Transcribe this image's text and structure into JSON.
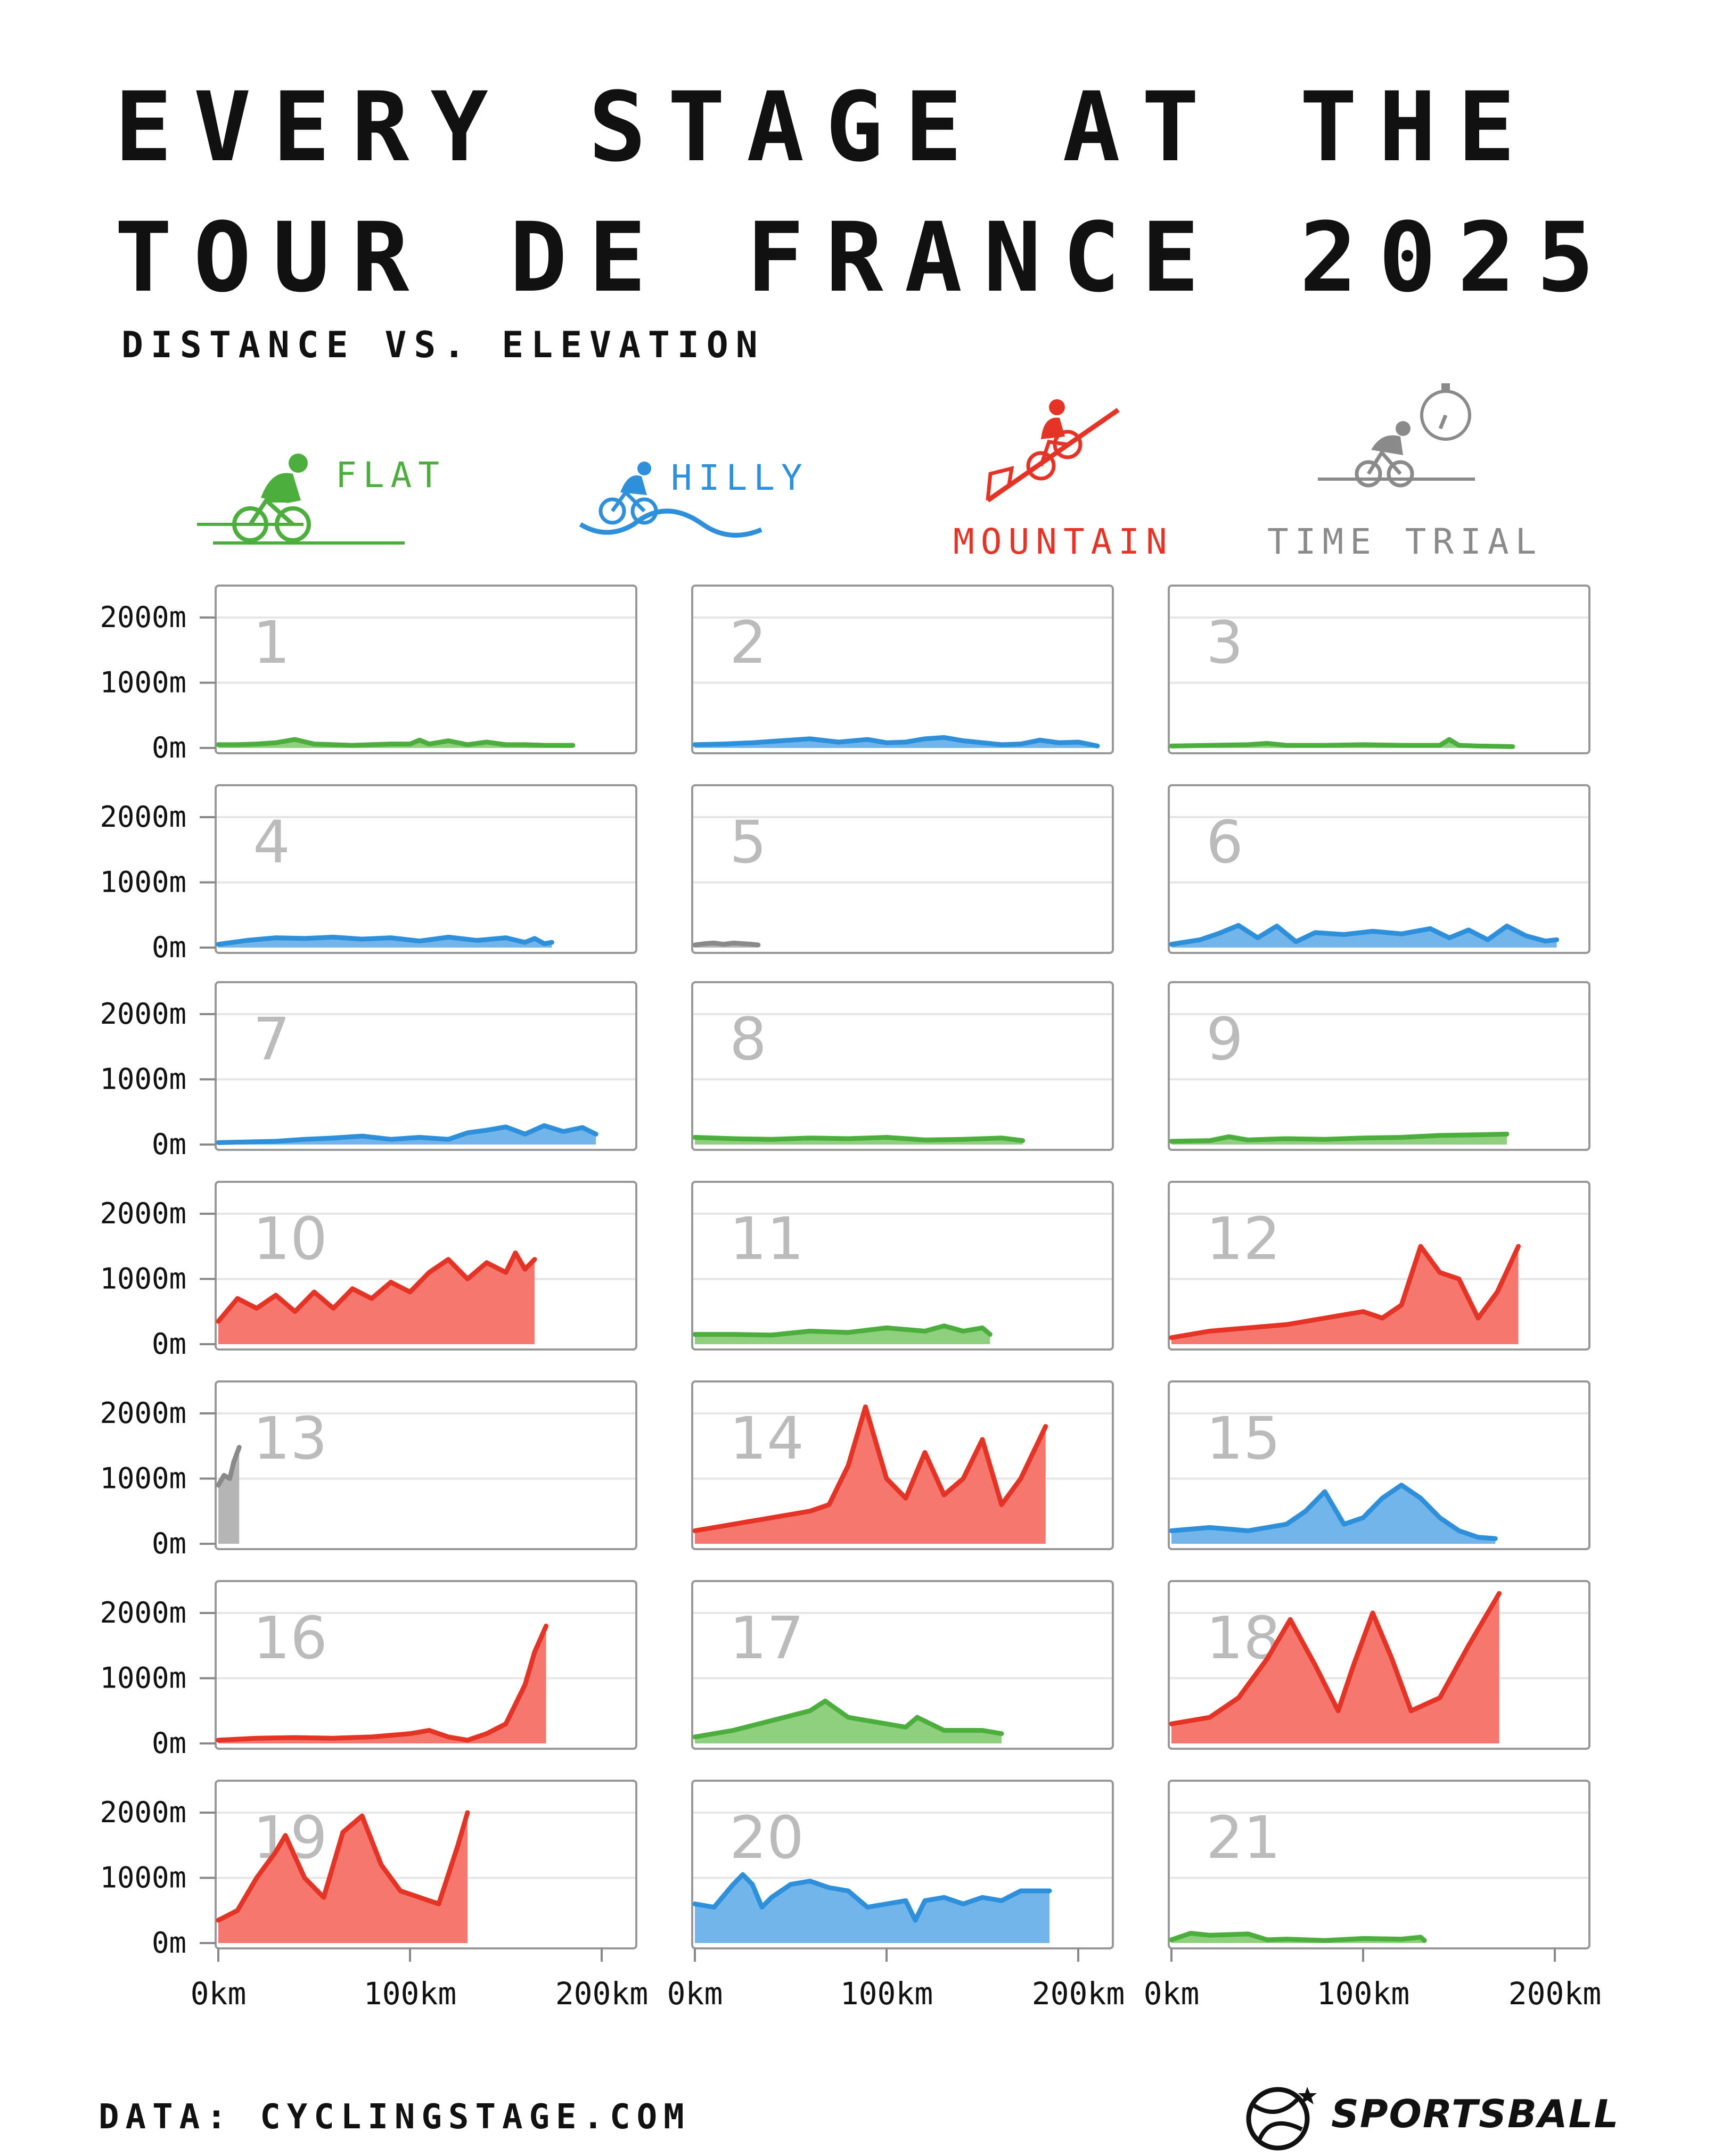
{
  "title_line1": "EVERY STAGE AT THE",
  "title_line2": "TOUR DE FRANCE 2025",
  "subtitle": "DISTANCE VS. ELEVATION",
  "legend": {
    "flat": "FLAT",
    "hilly": "HILLY",
    "mountain": "MOUNTAIN",
    "time_trial": "TIME TRIAL"
  },
  "colors": {
    "flat": "#4caf3d",
    "hilly": "#2e8fdb",
    "mountain": "#e53325",
    "time_trial": "#8a8a8a"
  },
  "source": "DATA: CYCLINGSTAGE.COM",
  "brand": "SPORTSBALL",
  "chart_data": {
    "type": "area",
    "xlabel": "",
    "ylabel": "",
    "xlim": [
      0,
      210
    ],
    "ylim": [
      0,
      2000
    ],
    "y_ticks": [
      {
        "value": 0,
        "label": "0m"
      },
      {
        "value": 1000,
        "label": "1000m"
      },
      {
        "value": 2000,
        "label": "2000m"
      }
    ],
    "x_ticks": [
      {
        "value": 0,
        "label": "0km"
      },
      {
        "value": 100,
        "label": "100km"
      },
      {
        "value": 200,
        "label": "200km"
      }
    ],
    "grid": true,
    "stages": [
      {
        "stage": "1",
        "type": "flat",
        "x": [
          0,
          10,
          20,
          30,
          40,
          50,
          60,
          70,
          80,
          90,
          100,
          105,
          110,
          120,
          130,
          140,
          150,
          160,
          170,
          185
        ],
        "y": [
          50,
          50,
          60,
          80,
          130,
          60,
          50,
          40,
          50,
          60,
          60,
          120,
          60,
          110,
          50,
          90,
          50,
          50,
          40,
          40
        ]
      },
      {
        "stage": "2",
        "type": "hilly",
        "x": [
          0,
          15,
          30,
          45,
          60,
          75,
          90,
          100,
          110,
          120,
          130,
          140,
          150,
          160,
          170,
          180,
          190,
          200,
          210
        ],
        "y": [
          50,
          60,
          80,
          110,
          140,
          90,
          130,
          80,
          90,
          140,
          160,
          110,
          80,
          50,
          60,
          120,
          80,
          90,
          30
        ]
      },
      {
        "stage": "3",
        "type": "flat",
        "x": [
          0,
          20,
          40,
          50,
          60,
          80,
          100,
          120,
          140,
          145,
          150,
          160,
          178
        ],
        "y": [
          30,
          40,
          50,
          70,
          40,
          40,
          50,
          40,
          40,
          130,
          40,
          30,
          20
        ]
      },
      {
        "stage": "4",
        "type": "hilly",
        "x": [
          0,
          15,
          30,
          45,
          60,
          75,
          90,
          105,
          120,
          135,
          150,
          160,
          165,
          170,
          174
        ],
        "y": [
          50,
          110,
          150,
          140,
          160,
          130,
          150,
          100,
          160,
          110,
          150,
          80,
          140,
          60,
          80
        ]
      },
      {
        "stage": "5",
        "type": "time_trial",
        "x": [
          0,
          5,
          10,
          15,
          20,
          25,
          30,
          33
        ],
        "y": [
          40,
          60,
          70,
          50,
          70,
          60,
          50,
          40
        ]
      },
      {
        "stage": "6",
        "type": "hilly",
        "x": [
          0,
          15,
          25,
          35,
          45,
          55,
          65,
          75,
          90,
          105,
          120,
          135,
          145,
          155,
          165,
          175,
          185,
          195,
          201
        ],
        "y": [
          50,
          120,
          220,
          340,
          150,
          330,
          90,
          230,
          200,
          250,
          210,
          290,
          150,
          270,
          120,
          330,
          180,
          100,
          120
        ]
      },
      {
        "stage": "7",
        "type": "hilly",
        "x": [
          0,
          15,
          30,
          45,
          60,
          75,
          90,
          105,
          120,
          130,
          140,
          150,
          160,
          170,
          180,
          190,
          197
        ],
        "y": [
          30,
          40,
          50,
          80,
          100,
          130,
          80,
          110,
          80,
          180,
          220,
          270,
          160,
          290,
          200,
          260,
          160
        ]
      },
      {
        "stage": "8",
        "type": "flat",
        "x": [
          0,
          20,
          40,
          60,
          80,
          100,
          120,
          140,
          160,
          171
        ],
        "y": [
          110,
          90,
          80,
          100,
          90,
          110,
          70,
          80,
          100,
          60
        ]
      },
      {
        "stage": "9",
        "type": "flat",
        "x": [
          0,
          20,
          30,
          40,
          60,
          80,
          100,
          120,
          140,
          160,
          175
        ],
        "y": [
          50,
          60,
          120,
          70,
          90,
          80,
          100,
          110,
          140,
          150,
          160
        ]
      },
      {
        "stage": "10",
        "type": "mountain",
        "x": [
          0,
          10,
          20,
          30,
          40,
          50,
          60,
          70,
          80,
          90,
          100,
          110,
          120,
          130,
          140,
          150,
          155,
          160,
          165
        ],
        "y": [
          350,
          700,
          550,
          750,
          500,
          800,
          550,
          850,
          700,
          950,
          800,
          1100,
          1300,
          1000,
          1250,
          1100,
          1400,
          1150,
          1300
        ]
      },
      {
        "stage": "11",
        "type": "flat",
        "x": [
          0,
          20,
          40,
          60,
          80,
          100,
          120,
          130,
          140,
          150,
          154
        ],
        "y": [
          150,
          150,
          140,
          200,
          180,
          250,
          200,
          280,
          200,
          250,
          150
        ]
      },
      {
        "stage": "12",
        "type": "mountain",
        "x": [
          0,
          20,
          40,
          60,
          80,
          100,
          110,
          120,
          130,
          140,
          150,
          160,
          170,
          181
        ],
        "y": [
          100,
          200,
          250,
          300,
          400,
          500,
          400,
          600,
          1500,
          1100,
          1000,
          400,
          800,
          1500
        ]
      },
      {
        "stage": "13",
        "type": "time_trial",
        "x": [
          0,
          3,
          6,
          8,
          10.9
        ],
        "y": [
          900,
          1050,
          1000,
          1250,
          1480
        ]
      },
      {
        "stage": "14",
        "type": "mountain",
        "x": [
          0,
          20,
          40,
          60,
          70,
          80,
          89,
          100,
          110,
          120,
          130,
          140,
          150,
          160,
          170,
          183
        ],
        "y": [
          200,
          300,
          400,
          500,
          600,
          1200,
          2100,
          1000,
          700,
          1400,
          750,
          1000,
          1600,
          600,
          1000,
          1800
        ]
      },
      {
        "stage": "15",
        "type": "hilly",
        "x": [
          0,
          20,
          40,
          60,
          70,
          80,
          90,
          100,
          110,
          120,
          130,
          140,
          150,
          160,
          169
        ],
        "y": [
          200,
          250,
          200,
          300,
          500,
          800,
          300,
          400,
          700,
          900,
          700,
          400,
          200,
          100,
          80
        ]
      },
      {
        "stage": "16",
        "type": "mountain",
        "x": [
          0,
          20,
          40,
          60,
          80,
          100,
          110,
          120,
          130,
          140,
          150,
          160,
          165,
          171
        ],
        "y": [
          50,
          80,
          90,
          80,
          100,
          150,
          200,
          100,
          50,
          150,
          300,
          900,
          1400,
          1800
        ]
      },
      {
        "stage": "17",
        "type": "flat",
        "x": [
          0,
          20,
          40,
          60,
          68,
          80,
          100,
          110,
          116,
          130,
          150,
          160
        ],
        "y": [
          100,
          200,
          350,
          500,
          650,
          400,
          300,
          250,
          400,
          200,
          200,
          150
        ]
      },
      {
        "stage": "18",
        "type": "mountain",
        "x": [
          0,
          20,
          35,
          50,
          62,
          75,
          87,
          95,
          105,
          115,
          125,
          140,
          155,
          171
        ],
        "y": [
          300,
          400,
          700,
          1300,
          1900,
          1200,
          500,
          1200,
          2000,
          1300,
          500,
          700,
          1500,
          2300
        ]
      },
      {
        "stage": "19",
        "type": "mountain",
        "x": [
          0,
          10,
          20,
          30,
          35,
          45,
          55,
          65,
          75,
          85,
          95,
          105,
          115,
          125,
          130
        ],
        "y": [
          350,
          500,
          1000,
          1400,
          1650,
          1000,
          700,
          1700,
          1950,
          1200,
          800,
          700,
          600,
          1500,
          2000
        ]
      },
      {
        "stage": "20",
        "type": "hilly",
        "x": [
          0,
          10,
          20,
          25,
          30,
          35,
          40,
          50,
          60,
          70,
          80,
          90,
          100,
          110,
          115,
          120,
          130,
          140,
          150,
          160,
          170,
          185
        ],
        "y": [
          600,
          550,
          900,
          1050,
          900,
          550,
          700,
          900,
          950,
          850,
          800,
          550,
          600,
          650,
          350,
          650,
          700,
          600,
          700,
          650,
          800,
          800
        ]
      },
      {
        "stage": "21",
        "type": "flat",
        "x": [
          0,
          10,
          20,
          30,
          40,
          50,
          60,
          80,
          100,
          120,
          130,
          132
        ],
        "y": [
          50,
          150,
          120,
          130,
          140,
          50,
          60,
          40,
          70,
          60,
          90,
          40
        ]
      }
    ]
  }
}
